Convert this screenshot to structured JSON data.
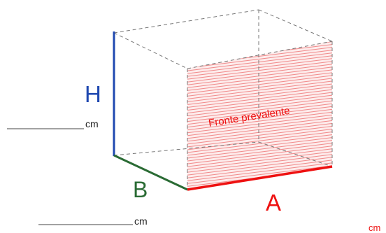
{
  "labels": {
    "height_letter": "H",
    "depth_letter": "B",
    "width_letter": "A",
    "front_face": "Fronte prevalente",
    "unit_height": "cm",
    "unit_depth": "cm",
    "unit_width": "cm"
  },
  "colors": {
    "height_edge": "#1f48b0",
    "depth_edge": "#2a6b34",
    "width_edge": "#ee1111",
    "front_face_hatch": "#f08a8a",
    "front_face_text": "#ee1111",
    "hidden_edges": "#777777",
    "blank_lines": "#444444"
  }
}
